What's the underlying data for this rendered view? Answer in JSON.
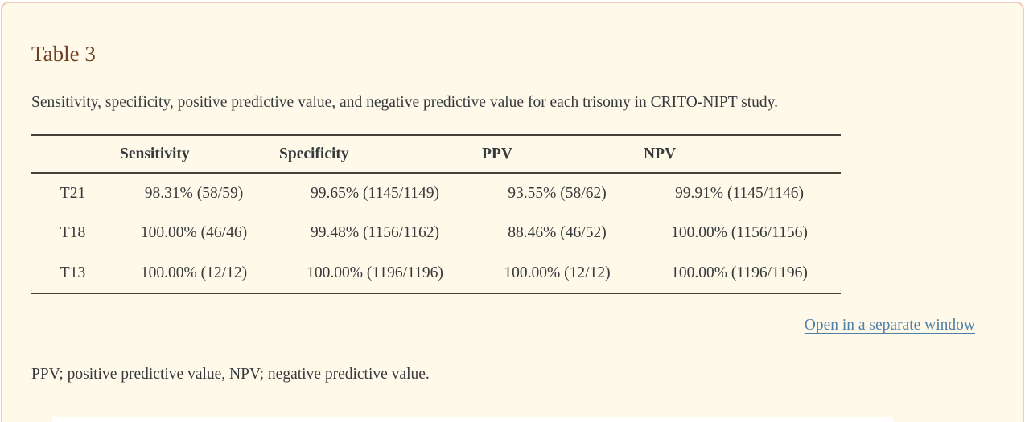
{
  "panel": {
    "title": "Table 3",
    "caption": "Sensitivity, specificity, positive predictive value, and negative predictive value for each trisomy in CRITO-NIPT study.",
    "link_label": "Open in a separate window",
    "footnote": "PPV; positive predictive value, NPV; negative predictive value."
  },
  "table": {
    "columns": [
      "",
      "Sensitivity",
      "Specificity",
      "PPV",
      "NPV"
    ],
    "rows": [
      {
        "label": "T21",
        "cells": [
          "98.31% (58/59)",
          "99.65% (1145/1149)",
          "93.55% (58/62)",
          "99.91% (1145/1146)"
        ]
      },
      {
        "label": "T18",
        "cells": [
          "100.00% (46/46)",
          "99.48% (1156/1162)",
          "88.46% (46/52)",
          "100.00% (1156/1156)"
        ]
      },
      {
        "label": "T13",
        "cells": [
          "100.00% (12/12)",
          "100.00% (1196/1196)",
          "100.00% (12/12)",
          "100.00% (1196/1196)"
        ]
      }
    ]
  },
  "colors": {
    "panel_background": "#fff9ea",
    "panel_border": "#f1cbb7",
    "title_text": "#6f4123",
    "body_text": "#363a3d",
    "table_rule": "#45423c",
    "link_text": "#4d7fa7"
  }
}
